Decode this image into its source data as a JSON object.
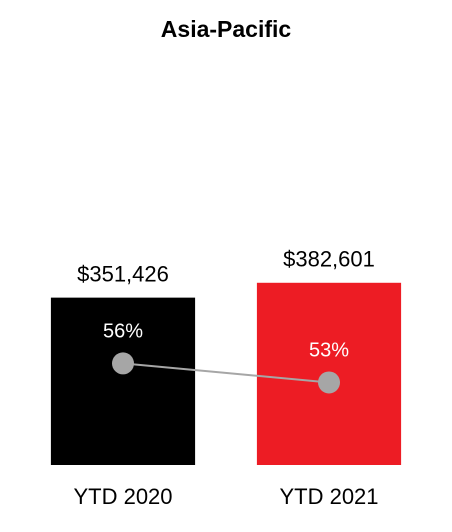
{
  "chart_data": {
    "type": "bar",
    "title": "Asia-Pacific",
    "categories": [
      "YTD 2020",
      "YTD 2021"
    ],
    "series": [
      {
        "type": "bar",
        "values": [
          351426,
          382601
        ],
        "value_labels": [
          "$351,426",
          "$382,601"
        ],
        "colors": [
          "#000000",
          "#ed1c24"
        ]
      },
      {
        "type": "line",
        "axis": "y2",
        "color": "#a6a6a6",
        "values": [
          56,
          53
        ],
        "value_labels": [
          "56%",
          "53%"
        ]
      }
    ],
    "ylim": [
      0,
      800000
    ],
    "y2lim": [
      40,
      100
    ]
  }
}
